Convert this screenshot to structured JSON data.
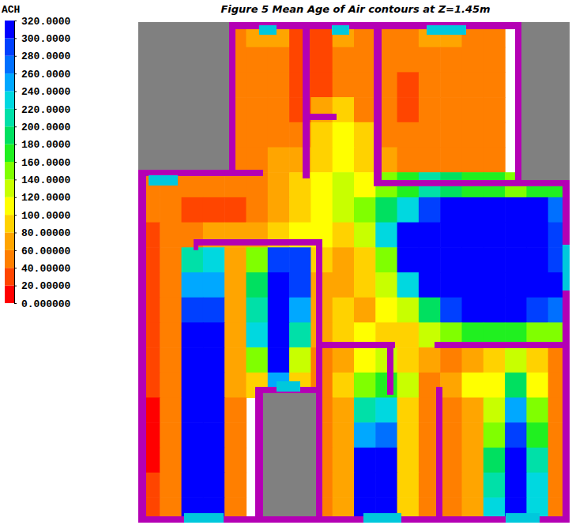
{
  "chart_data": {
    "type": "heatmap",
    "title": "Figure 5 Mean Age of Air contours at Z=1.45m",
    "tick_labels": false,
    "colorbar": {
      "title": "ACH",
      "range": [
        0,
        320
      ],
      "ticks": [
        {
          "value": 0,
          "label": "0.000000"
        },
        {
          "value": 20,
          "label": "20.00000"
        },
        {
          "value": 40,
          "label": "40.00000"
        },
        {
          "value": 60,
          "label": "60.00000"
        },
        {
          "value": 80,
          "label": "80.00000"
        },
        {
          "value": 100,
          "label": "100.0000"
        },
        {
          "value": 120,
          "label": "120.0000"
        },
        {
          "value": 140,
          "label": "140.0000"
        },
        {
          "value": 160,
          "label": "160.0000"
        },
        {
          "value": 180,
          "label": "180.0000"
        },
        {
          "value": 200,
          "label": "200.0000"
        },
        {
          "value": 220,
          "label": "220.0000"
        },
        {
          "value": 240,
          "label": "240.0000"
        },
        {
          "value": 260,
          "label": "260.0000"
        },
        {
          "value": 280,
          "label": "280.0000"
        },
        {
          "value": 300,
          "label": "300.0000"
        },
        {
          "value": 320,
          "label": "320.0000"
        }
      ],
      "colors": [
        "#ff0000",
        "#ff4500",
        "#ff7f00",
        "#ffa500",
        "#ffd200",
        "#ffff00",
        "#c8ff00",
        "#80ff00",
        "#20f020",
        "#00e060",
        "#00e0a8",
        "#00d8e0",
        "#00a8ff",
        "#0070ff",
        "#0040ff",
        "#0000ff"
      ]
    },
    "cells": [
      [
        null,
        null,
        null,
        null,
        50,
        70,
        70,
        30,
        30,
        70,
        50,
        50,
        50,
        70,
        70,
        50,
        50,
        null,
        null,
        null
      ],
      [
        null,
        null,
        null,
        null,
        50,
        50,
        50,
        30,
        30,
        50,
        50,
        50,
        50,
        50,
        50,
        50,
        50,
        null,
        null,
        null
      ],
      [
        null,
        null,
        null,
        null,
        50,
        50,
        50,
        30,
        30,
        50,
        50,
        50,
        30,
        50,
        50,
        50,
        50,
        null,
        null,
        null
      ],
      [
        null,
        null,
        null,
        null,
        50,
        50,
        50,
        30,
        70,
        90,
        50,
        50,
        30,
        50,
        50,
        50,
        50,
        null,
        null,
        null
      ],
      [
        null,
        null,
        null,
        null,
        50,
        50,
        50,
        50,
        90,
        110,
        90,
        50,
        50,
        50,
        50,
        50,
        50,
        null,
        null,
        null
      ],
      [
        null,
        null,
        null,
        null,
        50,
        50,
        70,
        70,
        90,
        110,
        90,
        70,
        50,
        50,
        50,
        50,
        50,
        null,
        null,
        null
      ],
      [
        50,
        50,
        50,
        50,
        50,
        50,
        70,
        90,
        110,
        130,
        110,
        150,
        170,
        200,
        190,
        170,
        160,
        150,
        160,
        170
      ],
      [
        50,
        50,
        30,
        30,
        30,
        50,
        70,
        90,
        110,
        130,
        150,
        190,
        230,
        280,
        310,
        320,
        320,
        320,
        300,
        260
      ],
      [
        30,
        50,
        50,
        70,
        70,
        70,
        90,
        110,
        110,
        90,
        130,
        220,
        310,
        320,
        320,
        320,
        320,
        320,
        320,
        280
      ],
      [
        30,
        50,
        200,
        220,
        70,
        150,
        290,
        290,
        90,
        70,
        90,
        150,
        300,
        320,
        320,
        320,
        320,
        320,
        320,
        280
      ],
      [
        30,
        50,
        250,
        250,
        70,
        180,
        320,
        290,
        70,
        70,
        90,
        120,
        230,
        310,
        320,
        320,
        320,
        320,
        320,
        300
      ],
      [
        30,
        50,
        280,
        280,
        60,
        200,
        320,
        250,
        70,
        90,
        70,
        110,
        130,
        180,
        280,
        320,
        320,
        300,
        290,
        270
      ],
      [
        30,
        50,
        300,
        300,
        60,
        220,
        320,
        200,
        70,
        90,
        110,
        90,
        90,
        120,
        150,
        170,
        170,
        160,
        150,
        150
      ],
      [
        30,
        50,
        310,
        310,
        70,
        150,
        320,
        130,
        50,
        70,
        110,
        130,
        90,
        70,
        50,
        60,
        90,
        130,
        90,
        50
      ],
      [
        20,
        50,
        320,
        310,
        70,
        90,
        240,
        90,
        50,
        90,
        150,
        170,
        130,
        50,
        60,
        110,
        110,
        180,
        110,
        50
      ],
      [
        10,
        50,
        320,
        320,
        50,
        null,
        null,
        null,
        50,
        70,
        200,
        220,
        90,
        50,
        50,
        70,
        130,
        250,
        150,
        50
      ],
      [
        10,
        50,
        320,
        320,
        50,
        null,
        null,
        null,
        50,
        70,
        250,
        260,
        90,
        50,
        50,
        70,
        150,
        280,
        170,
        50
      ],
      [
        10,
        50,
        320,
        320,
        50,
        null,
        null,
        null,
        50,
        70,
        300,
        300,
        90,
        50,
        50,
        70,
        180,
        320,
        200,
        50
      ],
      [
        30,
        50,
        320,
        320,
        50,
        null,
        null,
        null,
        50,
        70,
        320,
        320,
        90,
        50,
        50,
        70,
        200,
        320,
        220,
        50
      ],
      [
        30,
        50,
        320,
        320,
        50,
        null,
        null,
        null,
        50,
        70,
        320,
        320,
        90,
        50,
        50,
        70,
        220,
        320,
        220,
        50
      ]
    ]
  }
}
